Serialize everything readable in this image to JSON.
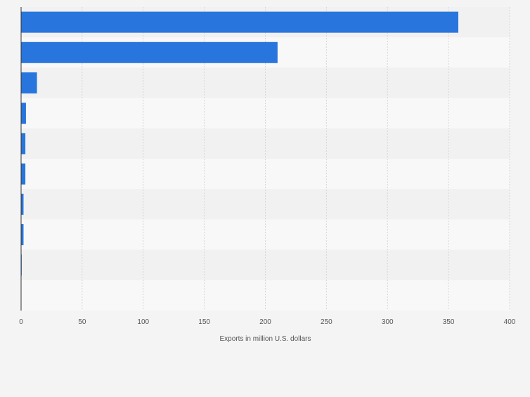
{
  "chart_data": {
    "type": "bar",
    "orientation": "horizontal",
    "categories": [
      "",
      "",
      "",
      "",
      "",
      "",
      "",
      "",
      "",
      ""
    ],
    "values": [
      358,
      210,
      13,
      4,
      3.5,
      3.5,
      2,
      2,
      0.5,
      0
    ],
    "xlabel": "Exports in million U.S. dollars",
    "ylabel": "",
    "xlim": [
      0,
      400
    ],
    "xticks": [
      0,
      50,
      100,
      150,
      200,
      250,
      300,
      350,
      400
    ],
    "grid": true,
    "legend": "none",
    "colors": {
      "bar": "#2876dd",
      "band_dark": "#f1f1f1",
      "band_light": "#f8f8f8",
      "page_bg": "#f4f4f4",
      "gridline": "#d6d6d6",
      "axis": "#333333",
      "tick_text": "#555555"
    }
  }
}
